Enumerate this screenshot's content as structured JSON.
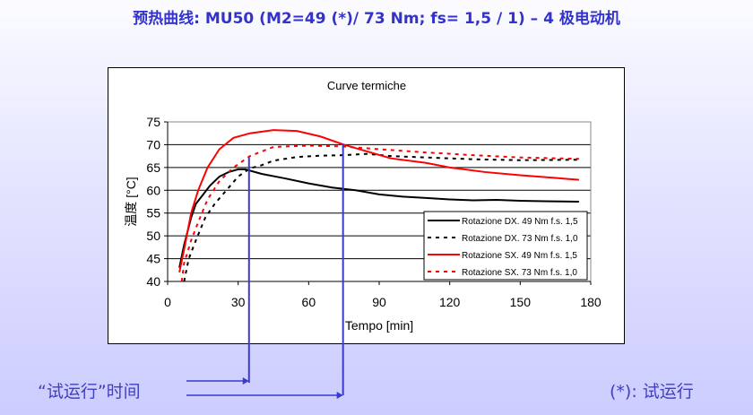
{
  "title": "预热曲线: MU50 (M2=49 (*)/ 73 Nm; fs= 1,5 / 1) – 4 极电动机",
  "runtime_label": "“试运行”时间",
  "note": "(*): 试运行",
  "marker_color": "#3a3acc",
  "chart_data": {
    "type": "line",
    "title": "Curve termiche",
    "xlabel": "Tempo [min]",
    "ylabel": "温度 [°C]",
    "xlim": [
      0,
      180
    ],
    "ylim": [
      40,
      75
    ],
    "xticks": [
      0,
      30,
      60,
      90,
      120,
      150,
      180
    ],
    "yticks": [
      40,
      45,
      50,
      55,
      60,
      65,
      70,
      75
    ],
    "grid": "horizontal",
    "legend": "bottom-right",
    "markers_x": [
      35,
      75
    ],
    "series": [
      {
        "name": "Rotazione DX. 49 Nm f.s. 1,5",
        "color": "#000000",
        "dash": false,
        "x": [
          5,
          7,
          10,
          12,
          15,
          18,
          22,
          26,
          30,
          33,
          40,
          50,
          60,
          70,
          80,
          90,
          100,
          110,
          120,
          130,
          140,
          150,
          160,
          175
        ],
        "y": [
          43,
          48,
          54,
          57,
          59,
          61,
          63,
          64,
          64.6,
          64.6,
          63.6,
          62.6,
          61.5,
          60.6,
          60,
          59.1,
          58.6,
          58.3,
          58,
          57.8,
          57.9,
          57.7,
          57.6,
          57.5
        ]
      },
      {
        "name": "Rotazione DX. 73 Nm f.s. 1,0",
        "color": "#000000",
        "dash": true,
        "x": [
          7,
          9,
          12,
          16,
          20,
          25,
          30,
          35,
          40,
          45,
          55,
          65,
          75,
          85,
          95,
          110,
          130,
          150,
          175
        ],
        "y": [
          40,
          45,
          49,
          54,
          57,
          60,
          63,
          64.8,
          65.5,
          66.5,
          67.3,
          67.6,
          67.7,
          68,
          67.5,
          67.2,
          66.8,
          66.6,
          66.7
        ]
      },
      {
        "name": "Rotazione SX. 49 Nm f.s. 1,5",
        "color": "#ff0000",
        "dash": false,
        "x": [
          5,
          7,
          10,
          13,
          17,
          22,
          28,
          35,
          45,
          55,
          65,
          75,
          85,
          95,
          110,
          120,
          135,
          150,
          165,
          175
        ],
        "y": [
          42,
          47,
          55,
          60,
          65,
          69,
          71.5,
          72.5,
          73.2,
          73,
          71.8,
          70,
          68.5,
          67,
          66,
          65,
          64,
          63.3,
          62.7,
          62.3
        ]
      },
      {
        "name": "Rotazione SX. 73 Nm f.s. 1,0",
        "color": "#ff0000",
        "dash": true,
        "x": [
          6,
          7,
          10,
          13,
          17,
          22,
          28,
          35,
          45,
          60,
          75,
          90,
          110,
          130,
          150,
          175
        ],
        "y": [
          40,
          44,
          49,
          53,
          58,
          62,
          65,
          67.5,
          69.5,
          69.8,
          69.6,
          69,
          68.3,
          67.7,
          67.2,
          66.9
        ]
      }
    ]
  }
}
